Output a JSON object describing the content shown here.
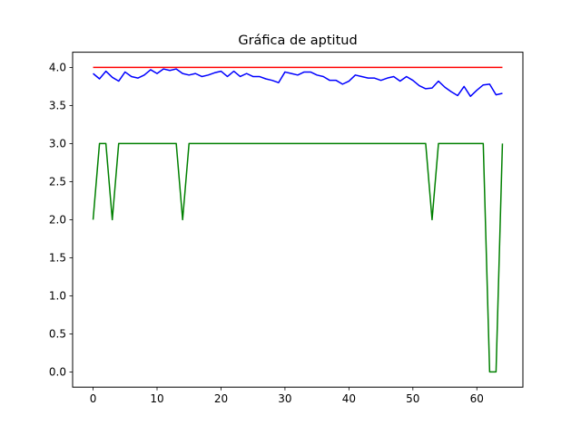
{
  "chart_data": {
    "type": "line",
    "title": "Gráfica de aptitud",
    "xlabel": "",
    "ylabel": "",
    "xlim": [
      -3.2,
      67.2
    ],
    "ylim": [
      -0.2,
      4.2
    ],
    "grid": false,
    "x_ticks": [
      0,
      10,
      20,
      30,
      40,
      50,
      60
    ],
    "y_ticks": [
      0.0,
      0.5,
      1.0,
      1.5,
      2.0,
      2.5,
      3.0,
      3.5,
      4.0
    ],
    "x_tick_labels": [
      "0",
      "10",
      "20",
      "30",
      "40",
      "50",
      "60"
    ],
    "y_tick_labels": [
      "0.0",
      "0.5",
      "1.0",
      "1.5",
      "2.0",
      "2.5",
      "3.0",
      "3.5",
      "4.0"
    ],
    "x": [
      0,
      1,
      2,
      3,
      4,
      5,
      6,
      7,
      8,
      9,
      10,
      11,
      12,
      13,
      14,
      15,
      16,
      17,
      18,
      19,
      20,
      21,
      22,
      23,
      24,
      25,
      26,
      27,
      28,
      29,
      30,
      31,
      32,
      33,
      34,
      35,
      36,
      37,
      38,
      39,
      40,
      41,
      42,
      43,
      44,
      45,
      46,
      47,
      48,
      49,
      50,
      51,
      52,
      53,
      54,
      55,
      56,
      57,
      58,
      59,
      60,
      61,
      62,
      63,
      64
    ],
    "series": [
      {
        "color": "#ff0000",
        "values": [
          4,
          4,
          4,
          4,
          4,
          4,
          4,
          4,
          4,
          4,
          4,
          4,
          4,
          4,
          4,
          4,
          4,
          4,
          4,
          4,
          4,
          4,
          4,
          4,
          4,
          4,
          4,
          4,
          4,
          4,
          4,
          4,
          4,
          4,
          4,
          4,
          4,
          4,
          4,
          4,
          4,
          4,
          4,
          4,
          4,
          4,
          4,
          4,
          4,
          4,
          4,
          4,
          4,
          4,
          4,
          4,
          4,
          4,
          4,
          4,
          4,
          4,
          4,
          4,
          4
        ]
      },
      {
        "color": "#0000ff",
        "values": [
          3.92,
          3.85,
          3.95,
          3.87,
          3.82,
          3.94,
          3.88,
          3.86,
          3.9,
          3.97,
          3.92,
          3.98,
          3.96,
          3.98,
          3.92,
          3.9,
          3.92,
          3.88,
          3.9,
          3.93,
          3.95,
          3.88,
          3.95,
          3.88,
          3.92,
          3.88,
          3.88,
          3.85,
          3.83,
          3.8,
          3.94,
          3.92,
          3.9,
          3.94,
          3.94,
          3.9,
          3.88,
          3.83,
          3.83,
          3.78,
          3.82,
          3.9,
          3.88,
          3.86,
          3.86,
          3.83,
          3.86,
          3.88,
          3.82,
          3.88,
          3.83,
          3.76,
          3.72,
          3.73,
          3.82,
          3.74,
          3.68,
          3.63,
          3.75,
          3.62,
          3.7,
          3.77,
          3.78,
          3.64,
          3.66
        ]
      },
      {
        "color": "#008000",
        "values": [
          2,
          3,
          3,
          2,
          3,
          3,
          3,
          3,
          3,
          3,
          3,
          3,
          3,
          3,
          2,
          3,
          3,
          3,
          3,
          3,
          3,
          3,
          3,
          3,
          3,
          3,
          3,
          3,
          3,
          3,
          3,
          3,
          3,
          3,
          3,
          3,
          3,
          3,
          3,
          3,
          3,
          3,
          3,
          3,
          3,
          3,
          3,
          3,
          3,
          3,
          3,
          3,
          3,
          2,
          3,
          3,
          3,
          3,
          3,
          3,
          3,
          3,
          0,
          0,
          3
        ]
      }
    ]
  }
}
